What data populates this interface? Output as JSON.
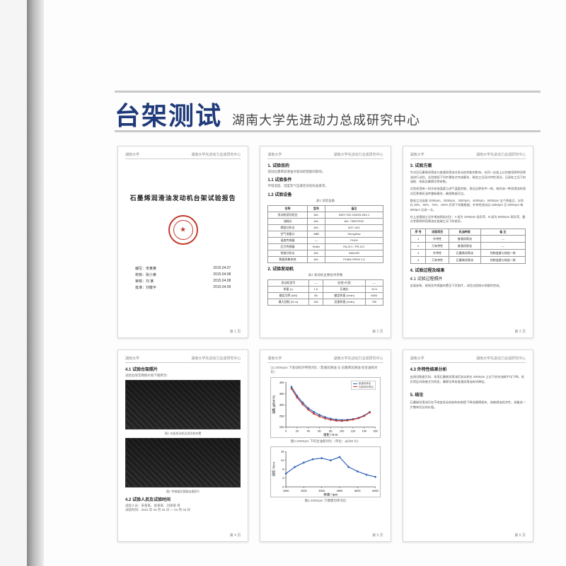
{
  "colors": {
    "title": "#1f3a7a",
    "seal": "#c43b2e",
    "rule": "#c9c9c9",
    "series1": "#2b5fb8",
    "series2": "#c0392b"
  },
  "header": {
    "title": "台架测试",
    "subtitle": "湖南大学先进动力总成研究中心"
  },
  "thumb_header": {
    "left": "湖南大学",
    "right": "湖南大学先进动力总成研究中心"
  },
  "page_labels": [
    "第 1 页",
    "第 2 页",
    "第 3 页",
    "第 4 页",
    "第 5 页",
    "第 6 页"
  ],
  "t1": {
    "report_title": "石墨烯润滑油发动机台架试验报告",
    "authors": [
      {
        "role": "编写：",
        "name": "宋某某",
        "date": "2015.04.07"
      },
      {
        "role": "校核：",
        "name": "张小某",
        "date": "2015.04.08"
      },
      {
        "role": "审核：",
        "name": "刘 某",
        "date": "2015.04.08"
      },
      {
        "role": "批准：",
        "name": "刘敬平",
        "date": "2015.04.09"
      }
    ]
  },
  "t2": {
    "s1_title": "1. 试验目的",
    "s1_body": "测试石墨烯润滑油对发动机性能的影响。",
    "s1_1_title": "1.1 试验条件",
    "s1_1_body": "环境温度、湿度及气压满足试验标准要求。",
    "s1_2_title": "1.2 试验设备",
    "tbl1_caption": "表1 试验设备",
    "tbl1_headers": [
      "名称",
      "型号",
      "备注"
    ],
    "tbl1_rows": [
      [
        "发动机测功机台",
        "AVL",
        "INDY S22-2/0525-1BV-1"
      ],
      [
        "油耗仪",
        "AVL",
        "AVL 735S/753C"
      ],
      [
        "燃烧分析仪",
        "AVL",
        "622 / 641"
      ],
      [
        "空气流量计",
        "ABB",
        "Sensyflow"
      ],
      [
        "温度传感器",
        "—",
        "Pt100"
      ],
      [
        "压力传感器",
        "Keller",
        "PA-21Y / PR-21Y"
      ],
      [
        "排放分析仪",
        "AVL",
        "AMA i60"
      ],
      [
        "数据采集系统",
        "AVL",
        "PUMA OPEN 1.5"
      ]
    ],
    "s2_title": "2. 试验发动机",
    "tbl2_caption": "表2 发动机主要技术参数",
    "tbl2_rows": [
      [
        "发动机型号",
        "—",
        "缸径×行程",
        "—"
      ],
      [
        "排量 (L)",
        "1.5",
        "压缩比",
        "10.5"
      ],
      [
        "额定功率 (kW)",
        "85",
        "额定转速 (r/min)",
        "6000"
      ],
      [
        "最大扭矩 (N·m)",
        "150",
        "怠速转速 (r/min)",
        "750"
      ]
    ]
  },
  "t3": {
    "s_title": "3. 试验方案",
    "body_lines": [
      "为对比石墨烯润滑油与普通润滑油对发动机性能的影响，在同一台架上分别使用两种润滑油进行试验。试验按照下列步骤依次完成磨合、稳态工况及外特性测试，记录各工况下的油耗、排放及摩擦功等参数。",
      "试验采用统一的冷却液温度与进气温度控制，保证边界条件一致。每完成一种润滑油的测试后更换机油并重新磨合，确保数据可比。",
      "稳态工况选取 1000rpm、2000rpm、3000rpm、4000rpm、5000rpm 五个转速点，分别在 25%、50%、75%、100% 负荷下采集数据；外特性测试自 1000rpm 至 6000rpm 每 500rpm 记录一点。"
    ],
    "body_b": "在上述基础工况外增加两组对比：A 组为 1000rpm 低负荷、B 组为 5000rpm 高负荷，重点考察两种润滑油在极端工况下的差异。",
    "tbl_headers": [
      "序 号",
      "试验项目",
      "机油种类",
      "备 注"
    ],
    "tbl_rows": [
      [
        "1",
        "外特性",
        "普通润滑油",
        "—"
      ],
      [
        "2",
        "万有特性",
        "普通润滑油",
        "—"
      ],
      [
        "3",
        "外特性",
        "石墨烯润滑油",
        "控制变量与前组一致"
      ],
      [
        "4",
        "万有特性",
        "石墨烯润滑油",
        "控制变量与前组一致"
      ]
    ],
    "s4_title": "4. 试验过程及结果",
    "s4_1_title": "4.1 试验过程照片",
    "s4_body": "台架安装、接线及传感器布置见下页照片，试验过程按计划顺利完成。"
  },
  "t4": {
    "s_title": "4.1 试验台架照片",
    "s_sub": "试验台架实物照片如下图所示：",
    "cap1": "图1 台架发动机及测功机布置",
    "cap2": "图2 传感器及管路连接照片",
    "s3_title": "4.2 试验人员及试验时间",
    "s3_line1": "试验人员：宋某某、张某某、刘某某 等",
    "s3_line2": "试验时间：2015 年 03 月 26 日 — 04 月 03 日"
  },
  "t5": {
    "top_note": "(1) 2000rpm 下发动机外特性对比（普通润滑油 与 石墨烯润滑油 综合油耗对比）",
    "legend": {
      "s1": "普通润滑油",
      "s2": "石墨烯润滑油"
    },
    "chart1": {
      "type": "line",
      "ylabel": "油耗 g/(kW·h)",
      "xlabel": "扭矩 / N·m",
      "ylim": [
        200,
        400
      ],
      "ytick_step": 50,
      "xlim": [
        0,
        160
      ],
      "xtick_step": 20,
      "series1": {
        "color": "#2b5fb8",
        "marker": "square",
        "x": [
          10,
          20,
          30,
          40,
          50,
          60,
          70,
          80,
          90,
          100,
          110,
          120,
          130,
          140,
          150
        ],
        "y": [
          380,
          340,
          310,
          285,
          268,
          255,
          245,
          238,
          234,
          232,
          233,
          236,
          242,
          252,
          268
        ]
      },
      "series2": {
        "color": "#c0392b",
        "marker": "square",
        "x": [
          10,
          20,
          30,
          40,
          50,
          60,
          70,
          80,
          90,
          100,
          110,
          120,
          130,
          140,
          150
        ],
        "y": [
          372,
          332,
          302,
          278,
          260,
          248,
          239,
          233,
          229,
          228,
          230,
          234,
          240,
          250,
          266
        ]
      },
      "caption": "图3  2000rpm 下综合油耗对比（单位：g/(kW·h)）",
      "line_width": 1.2,
      "marker_size": 2.5,
      "grid": false
    },
    "chart2": {
      "type": "line",
      "ylabel": "扭矩 / N·m",
      "xlabel": "转速 / rpm",
      "ylim": [
        0,
        16
      ],
      "ytick_step": 4,
      "xlim": [
        1000,
        6000
      ],
      "xtick_step": 1000,
      "series1": {
        "color": "#2b5fb8",
        "marker": "diamond",
        "x": [
          1000,
          1500,
          2000,
          2500,
          3000,
          3500,
          4000,
          4500,
          5000,
          5500,
          6000
        ],
        "y": [
          6,
          9,
          11,
          12.5,
          13,
          12,
          13.5,
          9,
          7,
          5.5,
          4.5
        ]
      },
      "caption": "图4  2000rpm 下摩擦功率对比",
      "line_width": 1.2,
      "marker_size": 2.5,
      "grid": false
    }
  },
  "t6": {
    "s_title_a": "4.3 外特性结果分析",
    "body_a": "由测试数据可知，采用石墨烯润滑油后发动机在 2000rpm 工况下综合油耗平均下降，低负荷区间改善尤为明显；摩擦功率较普通润滑油有所降低。",
    "s_title_b": "5. 结论",
    "body_b": "石墨烯润滑油可在不改变发动机结构的前提下降低摩擦损失、改善燃油经济性，具备进一步整车验证的价值。"
  }
}
